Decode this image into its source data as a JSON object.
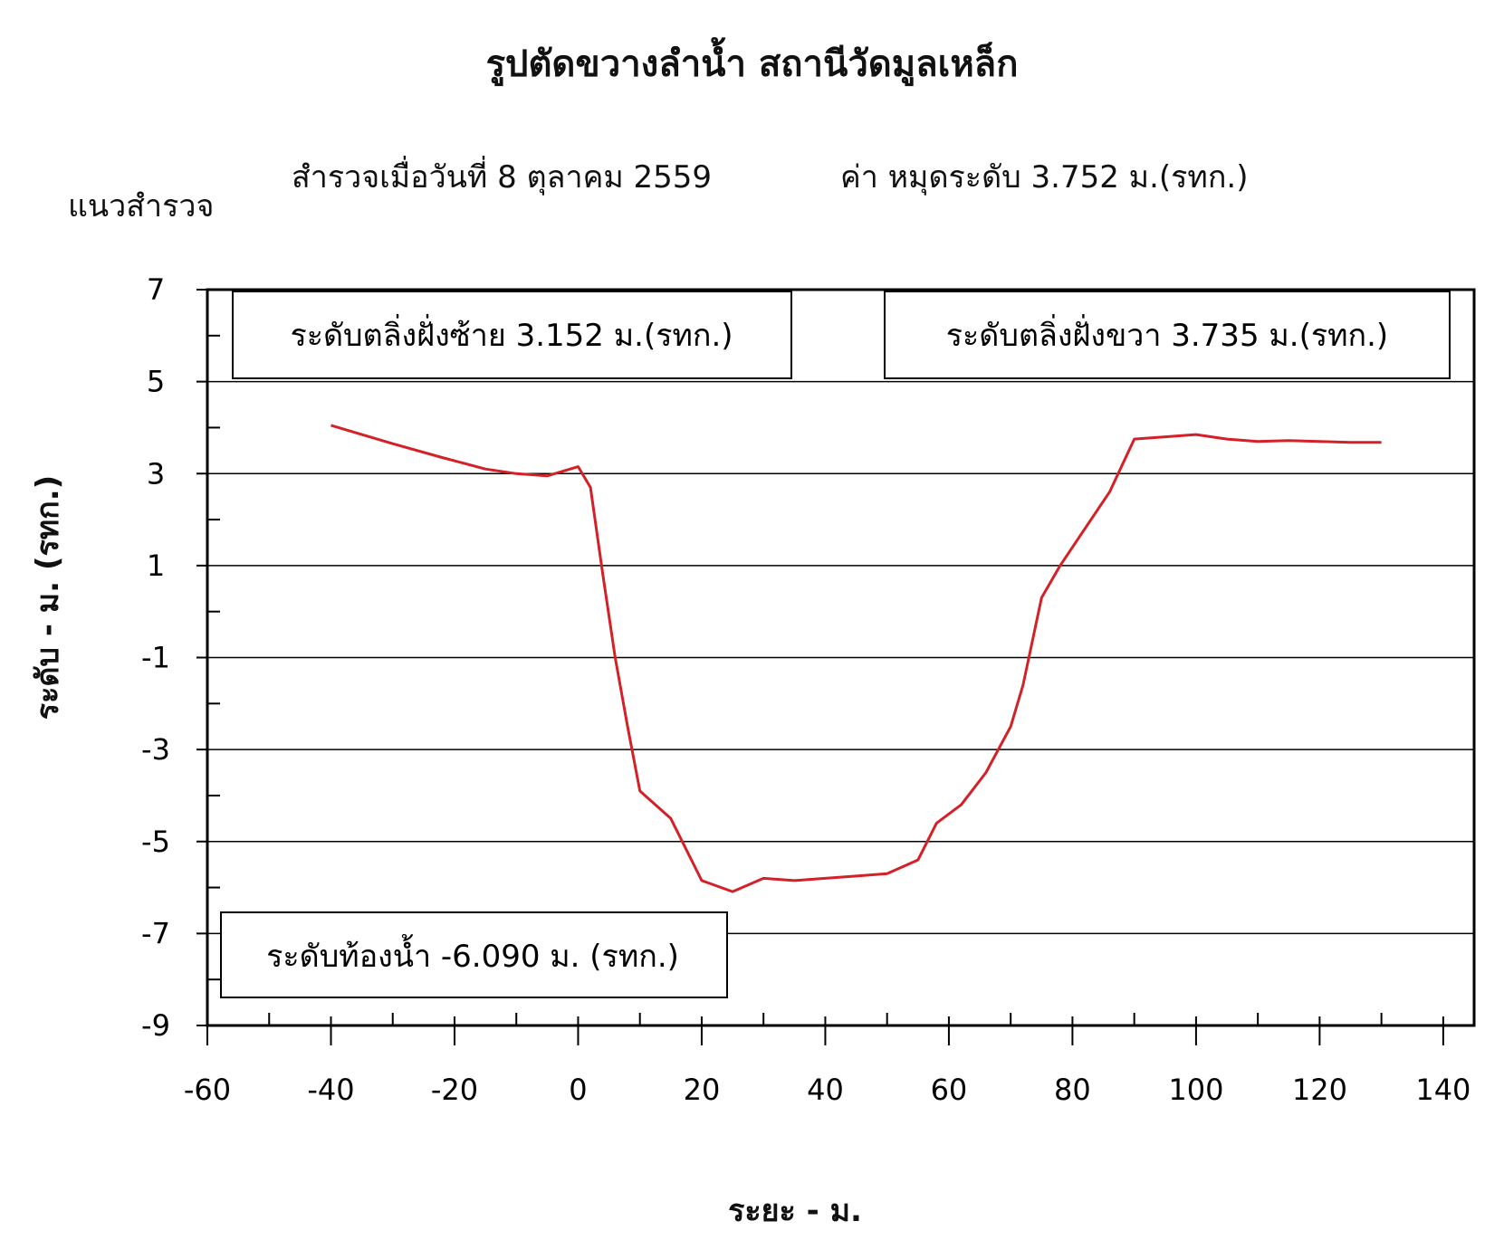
{
  "chart_data": {
    "type": "line",
    "title": "รูปตัดขวางลำน้ำ  สถานีวัดมูลเหล็ก",
    "subtitle_survey": "สำรวจเมื่อวันที่   8  ตุลาคม  2559",
    "subtitle_gauge": "ค่า หมุดระดับ  3.752 ม.(รทก.)",
    "survey_line_label": "แนวสำรวจ",
    "xlabel": "ระยะ - ม.",
    "ylabel": "ระดับ - ม. (รทก.)",
    "xlim": [
      -60,
      145
    ],
    "ylim": [
      -9,
      7
    ],
    "x_ticks": [
      -60,
      -40,
      -20,
      0,
      20,
      40,
      60,
      80,
      100,
      120,
      140
    ],
    "x_tick_labels": [
      "-60",
      "-40",
      "-20",
      "0",
      "20",
      "40",
      "60",
      "80",
      "100",
      "120",
      "140"
    ],
    "y_ticks": [
      7,
      5,
      3,
      1,
      -1,
      -3,
      -5,
      -7,
      -9
    ],
    "y_tick_labels": [
      "7",
      "5",
      "3",
      "1",
      "-1",
      "-3",
      "-5",
      "-7",
      "-9"
    ],
    "grid": "horizontal",
    "series": [
      {
        "color": "#d42027",
        "x": [
          -40,
          -30,
          -22,
          -15,
          -10,
          -5,
          0,
          2,
          4,
          6,
          8,
          10,
          15,
          20,
          25,
          30,
          35,
          40,
          45,
          50,
          55,
          58,
          62,
          66,
          70,
          72,
          75,
          78,
          82,
          86,
          90,
          95,
          100,
          105,
          110,
          115,
          120,
          125,
          130
        ],
        "y": [
          4.05,
          3.65,
          3.35,
          3.1,
          3.0,
          2.95,
          3.15,
          2.7,
          0.8,
          -1.0,
          -2.5,
          -3.9,
          -4.5,
          -5.85,
          -6.09,
          -5.8,
          -5.85,
          -5.8,
          -5.75,
          -5.7,
          -5.4,
          -4.6,
          -4.2,
          -3.5,
          -2.5,
          -1.6,
          0.3,
          1.0,
          1.8,
          2.6,
          3.75,
          3.8,
          3.85,
          3.75,
          3.7,
          3.72,
          3.7,
          3.68,
          3.68
        ]
      }
    ],
    "annotations": {
      "left_bank": "ระดับตลิ่งฝั่งซ้าย  3.152   ม.(รทก.)",
      "right_bank": "ระดับตลิ่งฝั่งขวา  3.735  ม.(รทก.)",
      "bed_level": "ระดับท้องน้ำ     -6.090 ม. (รทก.)"
    }
  }
}
